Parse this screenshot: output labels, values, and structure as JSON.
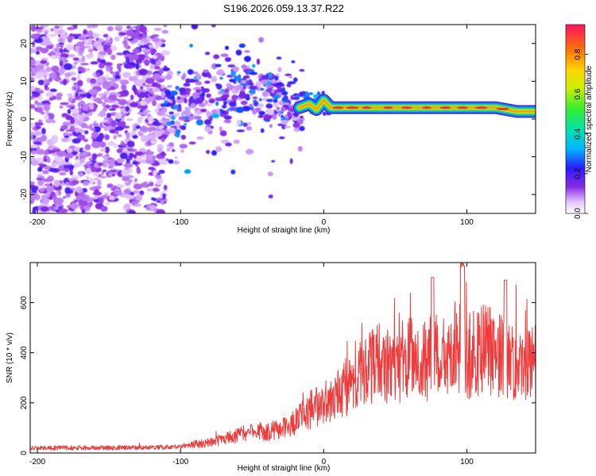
{
  "chart_data": [
    {
      "type": "heatmap",
      "title": "S196.2026.059.13.37.R22",
      "xlabel": "Height of straight line (km)",
      "ylabel": "Frequency (Hz)",
      "xlim": [
        -205,
        148
      ],
      "ylim": [
        -25,
        25
      ],
      "xticks": [
        -200,
        -100,
        0,
        100
      ],
      "xtick_labels": [
        "-200",
        "-100",
        "0",
        "100"
      ],
      "yticks": [
        20,
        10,
        0,
        -10,
        -20
      ],
      "ytick_labels": [
        "20",
        "10",
        "0",
        "-10",
        "-20"
      ],
      "ridge": {
        "description": "dominant spectral ridge (normalized amplitude ~0.9)",
        "x": [
          -17,
          -10,
          -5,
          0,
          5,
          20,
          40,
          60,
          80,
          100,
          120,
          135,
          148
        ],
        "y": [
          3,
          4,
          2.5,
          5,
          3,
          3,
          3,
          3,
          3,
          3,
          3,
          2,
          2
        ]
      },
      "colorbar": {
        "label": "Normalized spectral amplitude",
        "range": [
          0,
          0.95
        ],
        "ticks": [
          0.0,
          0.2,
          0.4,
          0.6,
          0.8
        ],
        "tick_labels": [
          "0.0",
          "0.2",
          "0.4",
          "0.6",
          "0.8"
        ]
      }
    },
    {
      "type": "line",
      "xlabel": "Height of straight line (km)",
      "ylabel": "SNR (10 * v/v)",
      "xlim": [
        -205,
        148
      ],
      "ylim": [
        0,
        760
      ],
      "xticks": [
        -200,
        -100,
        0,
        100
      ],
      "xtick_labels": [
        "-200",
        "-100",
        "0",
        "100"
      ],
      "yticks": [
        0,
        200,
        400,
        600
      ],
      "ytick_labels": [
        "0",
        "200",
        "400",
        "600"
      ],
      "series": [
        {
          "name": "SNR",
          "color": "#ef3b3b",
          "x": [
            -205,
            -180,
            -150,
            -120,
            -100,
            -90,
            -80,
            -70,
            -60,
            -50,
            -40,
            -30,
            -20,
            -10,
            0,
            10,
            20,
            30,
            40,
            50,
            60,
            70,
            80,
            90,
            95,
            100,
            110,
            120,
            130,
            140,
            148
          ],
          "y": [
            20,
            20,
            20,
            22,
            25,
            35,
            40,
            55,
            70,
            90,
            80,
            100,
            120,
            170,
            200,
            240,
            280,
            330,
            360,
            330,
            380,
            340,
            400,
            360,
            420,
            380,
            410,
            400,
            360,
            320,
            400
          ]
        }
      ]
    }
  ]
}
